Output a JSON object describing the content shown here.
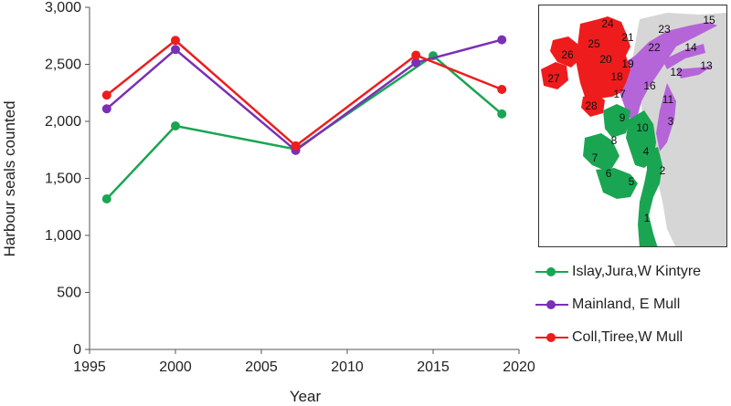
{
  "chart_data": {
    "type": "line",
    "xlabel": "Year",
    "ylabel": "Harbour seals counted",
    "xlim": [
      1995,
      2020
    ],
    "ylim": [
      0,
      3000
    ],
    "x_ticks": [
      1995,
      2000,
      2005,
      2010,
      2015,
      2020
    ],
    "y_ticks": [
      0,
      500,
      1000,
      1500,
      2000,
      2500,
      3000
    ],
    "x_tick_labels": [
      "1995",
      "2000",
      "2005",
      "2010",
      "2015",
      "2020"
    ],
    "y_tick_labels": [
      "0",
      "500",
      "1,000",
      "1,500",
      "2,000",
      "2,500",
      "3,000"
    ],
    "grid": false,
    "legend_placement": "right",
    "series": [
      {
        "name": "Islay,Jura,W Kintyre",
        "color": "#1aa552",
        "x": [
          1996,
          2000,
          2007,
          2015,
          2019
        ],
        "y": [
          1320,
          1960,
          1755,
          2575,
          2065
        ]
      },
      {
        "name": "Mainland, E Mull",
        "color": "#7b2fb5",
        "x": [
          1996,
          2000,
          2007,
          2014,
          2019
        ],
        "y": [
          2110,
          2630,
          1745,
          2515,
          2715
        ]
      },
      {
        "name": "Coll,Tiree,W Mull",
        "color": "#ee1c1c",
        "x": [
          1996,
          2000,
          2007,
          2014,
          2019
        ],
        "y": [
          2230,
          2710,
          1785,
          2580,
          2280
        ]
      }
    ]
  },
  "map": {
    "region_labels": [
      "1",
      "2",
      "3",
      "4",
      "5",
      "6",
      "7",
      "8",
      "9",
      "10",
      "11",
      "12",
      "13",
      "14",
      "15",
      "16",
      "17",
      "18",
      "19",
      "20",
      "21",
      "22",
      "23",
      "24",
      "25",
      "26",
      "27",
      "28"
    ],
    "colors": {
      "green": "#1aa552",
      "purple": "#b565d8",
      "red": "#ee1c1c",
      "land": "#d6d6d6"
    }
  }
}
